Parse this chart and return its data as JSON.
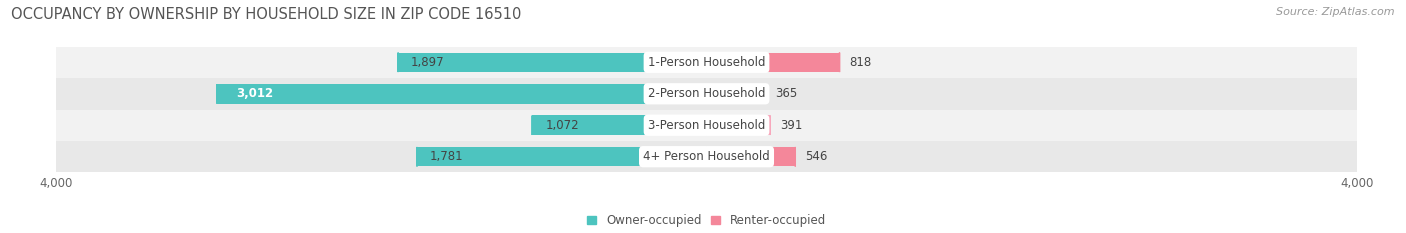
{
  "title": "OCCUPANCY BY OWNERSHIP BY HOUSEHOLD SIZE IN ZIP CODE 16510",
  "source": "Source: ZipAtlas.com",
  "categories": [
    "1-Person Household",
    "2-Person Household",
    "3-Person Household",
    "4+ Person Household"
  ],
  "owner_values": [
    1897,
    3012,
    1072,
    1781
  ],
  "renter_values": [
    818,
    365,
    391,
    546
  ],
  "owner_color": "#4DC4BF",
  "renter_color": "#F4879A",
  "renter_color_light": "#F7A8BC",
  "row_bg_color_odd": "#F2F2F2",
  "row_bg_color_even": "#E8E8E8",
  "axis_max": 4000,
  "title_fontsize": 10.5,
  "source_fontsize": 8,
  "bar_label_fontsize": 8.5,
  "cat_label_fontsize": 8.5,
  "axis_label_fontsize": 8.5,
  "legend_label_owner": "Owner-occupied",
  "legend_label_renter": "Renter-occupied",
  "figsize": [
    14.06,
    2.33
  ],
  "dpi": 100
}
